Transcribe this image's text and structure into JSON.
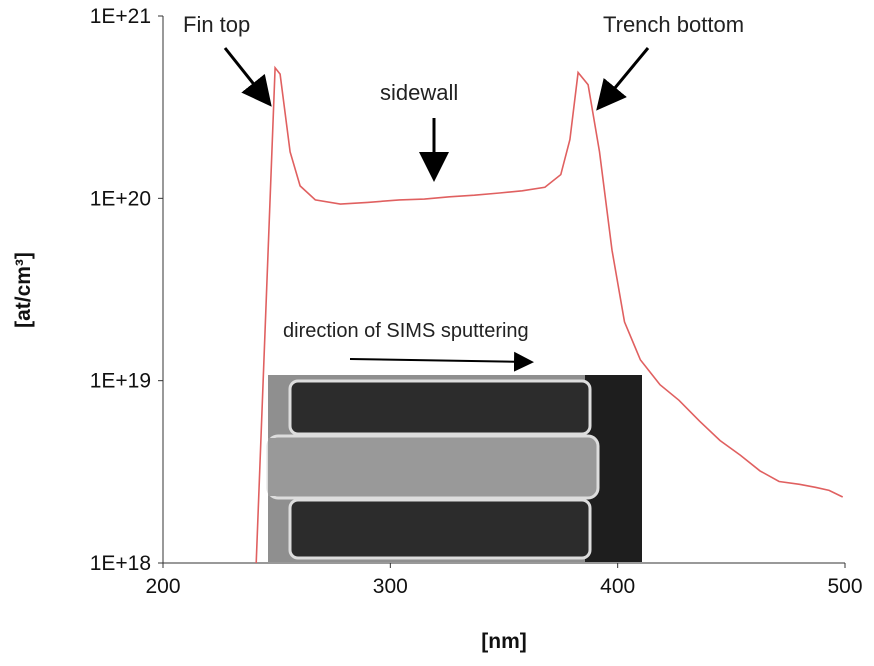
{
  "chart_data": {
    "type": "line",
    "title": "",
    "xlabel": "[nm]",
    "ylabel": "[at/cm³]",
    "xlim": [
      200,
      500
    ],
    "ylim": [
      1e+18,
      1e+21
    ],
    "yscale": "log",
    "grid": false,
    "x_ticks": [
      "200",
      "300",
      "400",
      "500"
    ],
    "y_ticks": [
      "1E+18",
      "1E+19",
      "1E+20",
      "1E+21"
    ],
    "line_color": "#e06060",
    "series": [
      {
        "x": [
          241,
          249.3,
          251.5,
          255.9,
          260.3,
          267,
          278,
          290,
          304,
          315,
          326,
          337,
          348,
          358,
          368,
          375,
          379,
          382.6,
          387,
          392,
          397.5,
          403,
          410,
          418.6,
          427,
          436,
          445,
          454,
          462.6,
          471,
          480,
          487,
          493,
          499
        ],
        "y": [
          1e+18,
          5.2e+20,
          4.8e+20,
          1.8e+20,
          1.17e+20,
          9.8e+19,
          9.3e+19,
          9.5e+19,
          9.8e+19,
          9.9e+19,
          1.02e+20,
          1.04e+20,
          1.07e+20,
          1.1e+20,
          1.15e+20,
          1.35e+20,
          2.1e+20,
          4.9e+20,
          4.2e+20,
          1.8e+20,
          5.2e+19,
          2.1e+19,
          1.3e+19,
          9.5e+18,
          7.8e+18,
          6e+18,
          4.7e+18,
          3.9e+18,
          3.2e+18,
          2.8e+18,
          2.7e+18,
          2.6e+18,
          2.5e+18,
          2.3e+18
        ]
      }
    ],
    "annotations": {
      "fin_top": "Fin top",
      "sidewall": "sidewall",
      "trench_bottom": "Trench bottom",
      "sputter_direction": "direction of SIMS sputtering"
    }
  }
}
